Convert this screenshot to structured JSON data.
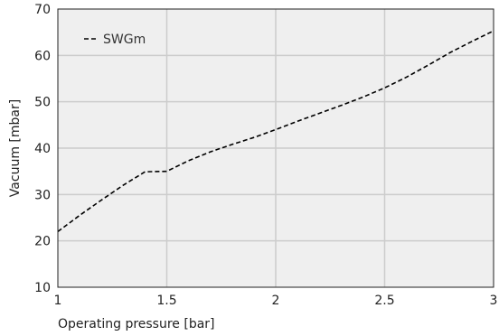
{
  "chart_data": {
    "type": "line",
    "title": "",
    "xlabel": "Operating pressure [bar]",
    "ylabel": "Vacuum [mbar]",
    "xlim": [
      1,
      3
    ],
    "ylim": [
      10,
      70
    ],
    "xticks": [
      1,
      1.5,
      2,
      2.5,
      3
    ],
    "yticks": [
      10,
      20,
      30,
      40,
      50,
      60,
      70
    ],
    "xtick_labels": [
      "1",
      "1.5",
      "2",
      "2.5",
      "3"
    ],
    "ytick_labels": [
      "10",
      "20",
      "30",
      "40",
      "50",
      "60",
      "70"
    ],
    "grid": true,
    "legend": "top-left",
    "background_color": "#efefef",
    "grid_color": "#cccccc",
    "series": [
      {
        "name": "SWGm",
        "style": "dashed",
        "color": "#000000",
        "x": [
          1.0,
          1.1,
          1.2,
          1.3,
          1.4,
          1.5,
          1.6,
          1.7,
          1.8,
          1.9,
          2.0,
          2.1,
          2.2,
          2.3,
          2.4,
          2.5,
          2.6,
          2.7,
          2.8,
          2.9,
          3.0
        ],
        "y": [
          22.0,
          25.5,
          28.8,
          32.0,
          34.9,
          35.0,
          37.3,
          39.2,
          40.8,
          42.3,
          44.0,
          45.8,
          47.5,
          49.2,
          51.0,
          53.0,
          55.3,
          57.9,
          60.6,
          63.0,
          65.3
        ]
      }
    ]
  }
}
